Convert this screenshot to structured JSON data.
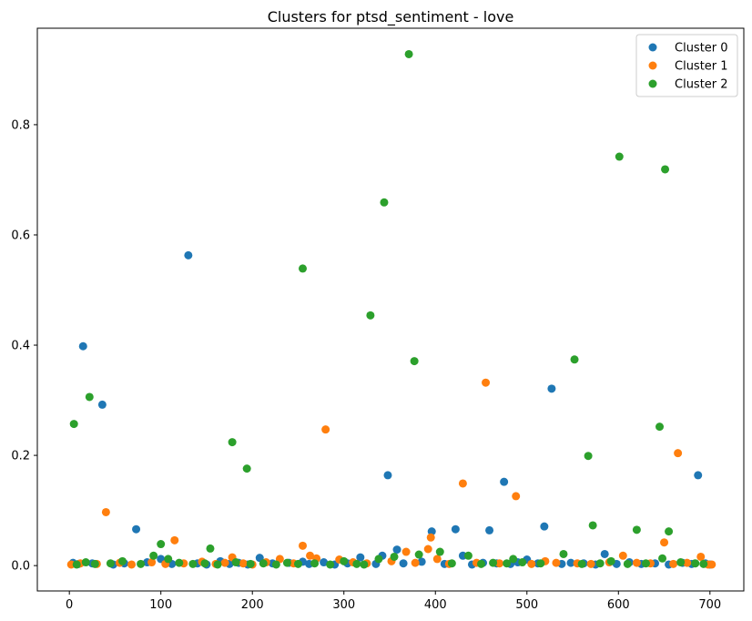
{
  "chart_data": {
    "type": "scatter",
    "title": "Clusters for ptsd_sentiment - love",
    "xlabel": "",
    "ylabel": "",
    "xlim": [
      -35,
      737
    ],
    "ylim": [
      -0.046,
      0.975
    ],
    "xticks": [
      0,
      100,
      200,
      300,
      400,
      500,
      600,
      700
    ],
    "yticks": [
      0.0,
      0.2,
      0.4,
      0.6,
      0.8
    ],
    "xtick_labels": [
      "0",
      "100",
      "200",
      "300",
      "400",
      "500",
      "600",
      "700"
    ],
    "ytick_labels": [
      "0.0",
      "0.2",
      "0.4",
      "0.6",
      "0.8"
    ],
    "grid": false,
    "legend": "top-right",
    "series": [
      {
        "name": "Cluster 0",
        "color": "#1f77b4",
        "x": [
          4,
          15,
          36,
          73,
          130,
          255,
          348,
          358,
          396,
          422,
          430,
          459,
          475,
          519,
          527,
          585,
          687,
          10,
          25,
          48,
          60,
          85,
          100,
          112,
          140,
          150,
          165,
          175,
          185,
          195,
          208,
          222,
          240,
          262,
          278,
          290,
          304,
          318,
          335,
          342,
          365,
          385,
          410,
          440,
          452,
          467,
          482,
          490,
          500,
          512,
          538,
          548,
          562,
          575,
          598,
          612,
          625,
          640,
          655,
          670,
          680,
          695,
          700
        ],
        "y": [
          0.005,
          0.398,
          0.292,
          0.066,
          0.563,
          0.007,
          0.164,
          0.029,
          0.062,
          0.066,
          0.018,
          0.064,
          0.152,
          0.071,
          0.321,
          0.021,
          0.164,
          0.003,
          0.004,
          0.002,
          0.004,
          0.006,
          0.012,
          0.003,
          0.004,
          0.002,
          0.008,
          0.003,
          0.005,
          0.002,
          0.014,
          0.004,
          0.005,
          0.003,
          0.006,
          0.002,
          0.004,
          0.015,
          0.003,
          0.018,
          0.004,
          0.007,
          0.003,
          0.002,
          0.005,
          0.004,
          0.003,
          0.006,
          0.011,
          0.004,
          0.003,
          0.005,
          0.004,
          0.002,
          0.003,
          0.006,
          0.003,
          0.004,
          0.002,
          0.005,
          0.003,
          0.004,
          0.002
        ]
      },
      {
        "name": "Cluster 1",
        "color": "#ff7f0e",
        "x": [
          2,
          40,
          115,
          178,
          255,
          263,
          280,
          368,
          392,
          395,
          430,
          455,
          488,
          650,
          665,
          690,
          702,
          12,
          30,
          55,
          68,
          90,
          105,
          125,
          145,
          160,
          170,
          190,
          200,
          215,
          230,
          245,
          270,
          295,
          310,
          325,
          352,
          378,
          402,
          415,
          445,
          470,
          505,
          520,
          532,
          555,
          570,
          590,
          605,
          620,
          635,
          660,
          675,
          698
        ],
        "y": [
          0.002,
          0.097,
          0.046,
          0.015,
          0.036,
          0.018,
          0.247,
          0.025,
          0.03,
          0.051,
          0.149,
          0.332,
          0.126,
          0.042,
          0.204,
          0.016,
          0.002,
          0.004,
          0.003,
          0.005,
          0.002,
          0.006,
          0.003,
          0.004,
          0.007,
          0.003,
          0.005,
          0.004,
          0.002,
          0.006,
          0.012,
          0.004,
          0.013,
          0.011,
          0.006,
          0.004,
          0.008,
          0.005,
          0.012,
          0.003,
          0.005,
          0.004,
          0.003,
          0.008,
          0.005,
          0.004,
          0.003,
          0.006,
          0.018,
          0.005,
          0.004,
          0.003,
          0.005,
          0.002
        ]
      },
      {
        "name": "Cluster 2",
        "color": "#2ca02c",
        "x": [
          5,
          22,
          100,
          154,
          178,
          194,
          255,
          329,
          344,
          371,
          377,
          552,
          567,
          572,
          601,
          620,
          645,
          651,
          655,
          8,
          18,
          28,
          45,
          58,
          78,
          92,
          108,
          120,
          135,
          148,
          162,
          182,
          198,
          212,
          226,
          238,
          250,
          268,
          285,
          300,
          314,
          322,
          338,
          355,
          382,
          405,
          418,
          436,
          450,
          463,
          478,
          485,
          495,
          515,
          540,
          560,
          580,
          592,
          610,
          630,
          648,
          668,
          684,
          693
        ],
        "y": [
          0.257,
          0.306,
          0.039,
          0.031,
          0.224,
          0.176,
          0.539,
          0.454,
          0.659,
          0.928,
          0.371,
          0.374,
          0.199,
          0.073,
          0.742,
          0.065,
          0.252,
          0.719,
          0.062,
          0.002,
          0.006,
          0.003,
          0.004,
          0.008,
          0.003,
          0.018,
          0.012,
          0.005,
          0.003,
          0.004,
          0.002,
          0.006,
          0.003,
          0.004,
          0.002,
          0.005,
          0.003,
          0.004,
          0.002,
          0.008,
          0.003,
          0.002,
          0.012,
          0.016,
          0.02,
          0.025,
          0.004,
          0.018,
          0.003,
          0.005,
          0.004,
          0.012,
          0.006,
          0.004,
          0.021,
          0.003,
          0.004,
          0.008,
          0.003,
          0.004,
          0.013,
          0.006,
          0.004,
          0.003
        ]
      }
    ]
  }
}
